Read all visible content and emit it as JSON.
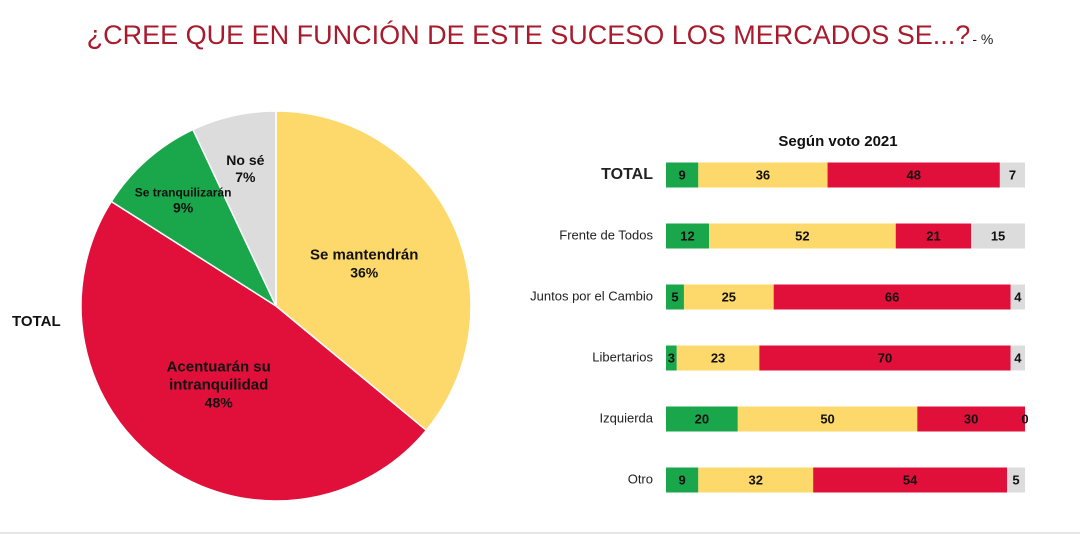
{
  "title": "¿CREE QUE EN FUNCIÓN DE ESTE SUCESO LOS MERCADOS SE...?",
  "title_unit": "- %",
  "chart_data": [
    {
      "type": "pie",
      "title": "TOTAL",
      "categories": [
        "Se mantendrán",
        "Acentuarán su intranquilidad",
        "Se tranquilizarán",
        "No sé"
      ],
      "values": [
        36,
        48,
        9,
        7
      ],
      "value_labels": [
        "36%",
        "48%",
        "9%",
        "7%"
      ],
      "colors": [
        "#fdd86a",
        "#e0103a",
        "#1aa64a",
        "#dcdcdc"
      ]
    },
    {
      "type": "stacked-bar",
      "orientation": "horizontal",
      "title": "Según voto 2021",
      "categories": [
        "TOTAL",
        "Frente de Todos",
        "Juntos por el Cambio",
        "Libertarios",
        "Izquierda",
        "Otro"
      ],
      "xlim": [
        0,
        100
      ],
      "series": [
        {
          "color": "#1aa64a",
          "values": [
            9,
            12,
            5,
            3,
            20,
            9
          ]
        },
        {
          "color": "#fdd86a",
          "values": [
            36,
            52,
            25,
            23,
            50,
            32
          ]
        },
        {
          "color": "#e0103a",
          "values": [
            48,
            21,
            66,
            70,
            30,
            54
          ]
        },
        {
          "color": "#dcdcdc",
          "values": [
            7,
            15,
            4,
            4,
            0,
            5
          ]
        }
      ]
    }
  ]
}
